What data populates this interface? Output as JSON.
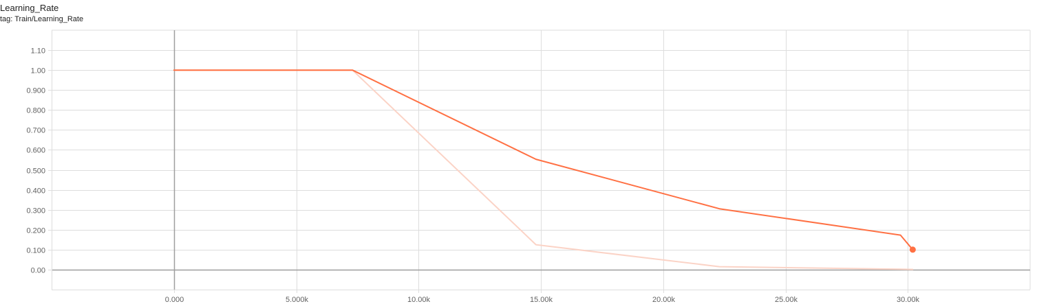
{
  "card": {
    "title": "Learning_Rate",
    "subtitle": "tag: Train/Learning_Rate"
  },
  "colors": {
    "series": "#ff7043",
    "series_raw": "#fbd3c6",
    "grid": "#dddddd",
    "axis": "#9e9e9e",
    "tick_text": "#616161"
  },
  "chart_data": {
    "type": "line",
    "title": "Learning_Rate",
    "subtitle": "tag: Train/Learning_Rate",
    "xlabel": "",
    "ylabel": "",
    "xlim": [
      -5000,
      35000
    ],
    "ylim": [
      -0.1,
      1.2
    ],
    "grid": true,
    "x_ticks": [
      0,
      5000,
      10000,
      15000,
      20000,
      25000,
      30000
    ],
    "x_tick_labels": [
      "0.000",
      "5.000k",
      "10.00k",
      "15.00k",
      "20.00k",
      "25.00k",
      "30.00k"
    ],
    "y_ticks": [
      0.0,
      0.1,
      0.2,
      0.3,
      0.4,
      0.5,
      0.6,
      0.7,
      0.8,
      0.9,
      1.0,
      1.1
    ],
    "y_tick_labels": [
      "0.00",
      "0.100",
      "0.200",
      "0.300",
      "0.400",
      "0.500",
      "0.600",
      "0.700",
      "0.800",
      "0.900",
      "1.00",
      "1.10"
    ],
    "series": [
      {
        "role": "smoothed",
        "x": [
          0,
          7300,
          14800,
          22300,
          29700,
          30200
        ],
        "y": [
          1.0,
          1.0,
          0.553,
          0.305,
          0.173,
          0.1
        ]
      },
      {
        "role": "raw",
        "x": [
          0,
          7300,
          14800,
          22300,
          29700,
          30200
        ],
        "y": [
          1.0,
          1.0,
          0.125,
          0.015,
          0.002,
          0.001
        ]
      }
    ],
    "last_point": {
      "x": 30200,
      "y": 0.1
    }
  }
}
